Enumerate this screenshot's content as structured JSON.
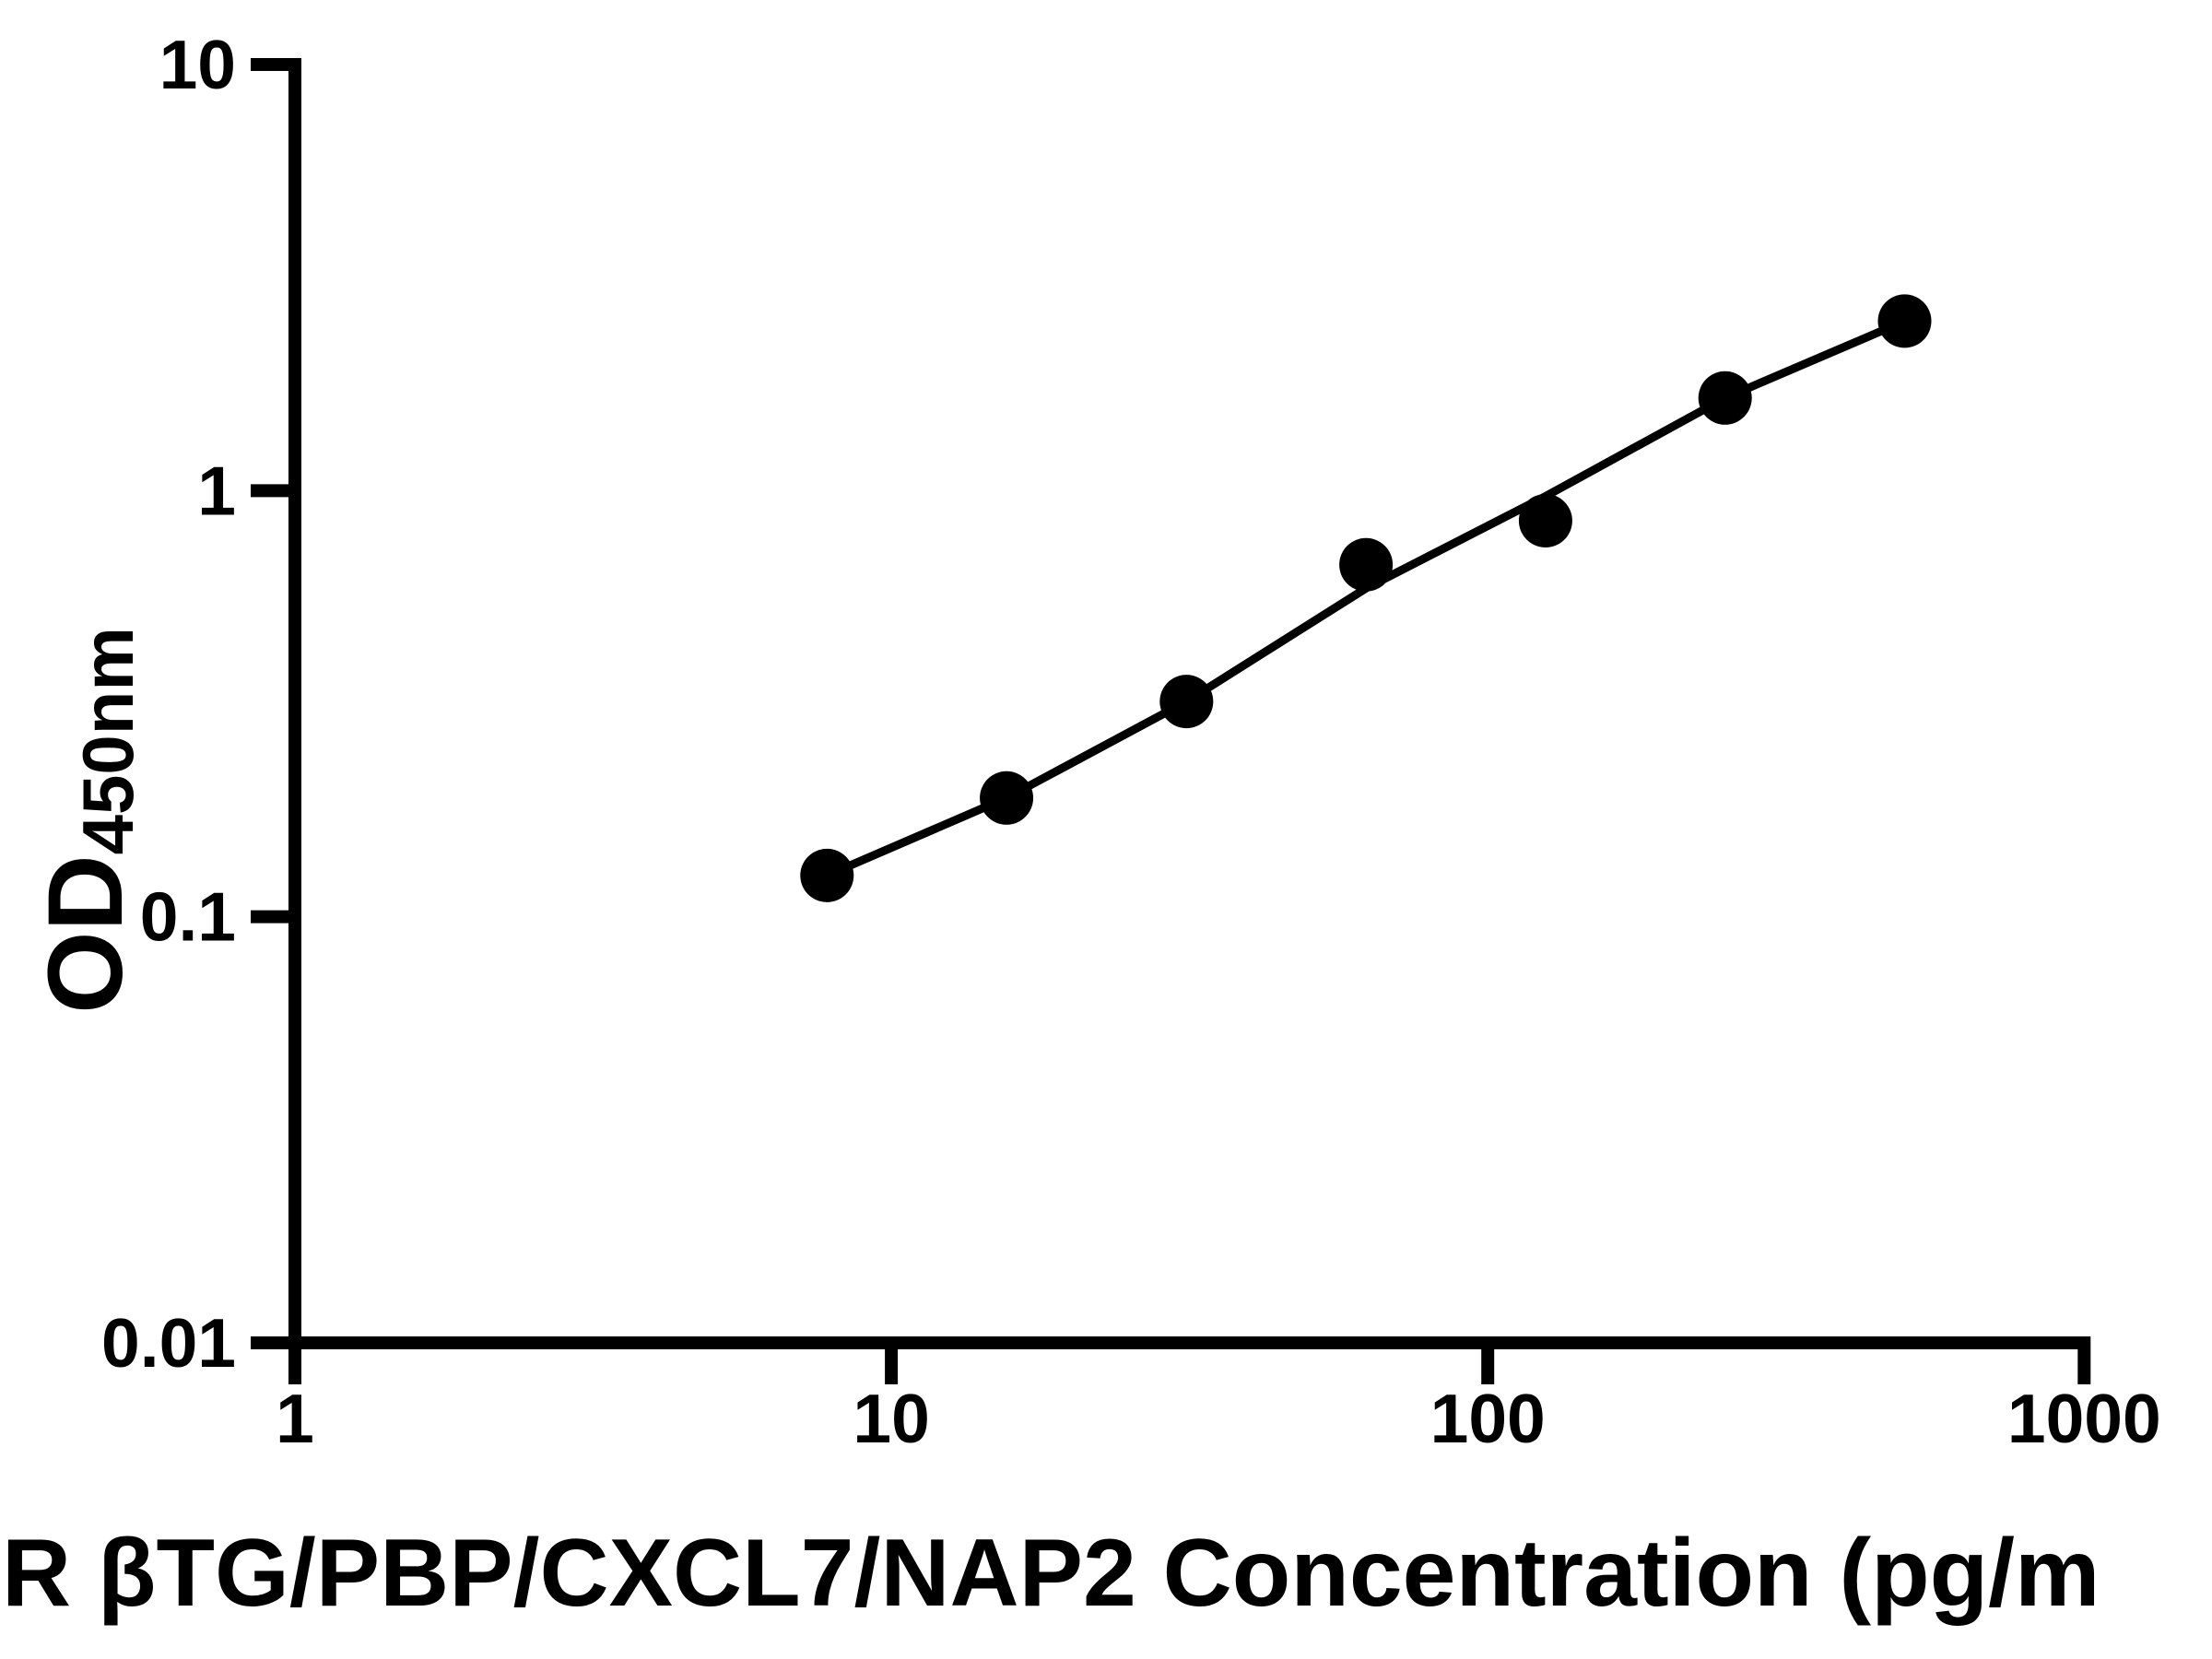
{
  "chart_data": {
    "type": "scatter",
    "title": "",
    "xlabel": "R βTG/PBP/CXCL7/NAP2 Concentration (pg/m",
    "ylabel": "OD",
    "ylabel_subscript": "450nm",
    "x_scale": "log",
    "y_scale": "log",
    "xlim": [
      1,
      1000
    ],
    "ylim": [
      0.01,
      10
    ],
    "grid": false,
    "legend": null,
    "background_color": "#ffffff",
    "foreground_color": "#000000",
    "x_ticks": [
      {
        "value": 1,
        "label": "1"
      },
      {
        "value": 10,
        "label": "10"
      },
      {
        "value": 100,
        "label": "100"
      },
      {
        "value": 1000,
        "label": "1000"
      }
    ],
    "y_ticks": [
      {
        "value": 10,
        "label": "10"
      },
      {
        "value": 1,
        "label": "1"
      },
      {
        "value": 0.1,
        "label": "0.1"
      },
      {
        "value": 0.01,
        "label": "0.01"
      }
    ],
    "points": [
      {
        "x": 7.8,
        "y": 0.125
      },
      {
        "x": 15.6,
        "y": 0.19
      },
      {
        "x": 31.25,
        "y": 0.32
      },
      {
        "x": 62.5,
        "y": 0.67
      },
      {
        "x": 125,
        "y": 0.85
      },
      {
        "x": 250,
        "y": 1.65
      },
      {
        "x": 500,
        "y": 2.5
      }
    ],
    "fit_line": [
      {
        "x": 7.8,
        "y": 0.125
      },
      {
        "x": 15.6,
        "y": 0.19
      },
      {
        "x": 31.25,
        "y": 0.32
      },
      {
        "x": 62.5,
        "y": 0.59
      },
      {
        "x": 125,
        "y": 0.97
      },
      {
        "x": 250,
        "y": 1.65
      },
      {
        "x": 500,
        "y": 2.5
      }
    ]
  }
}
